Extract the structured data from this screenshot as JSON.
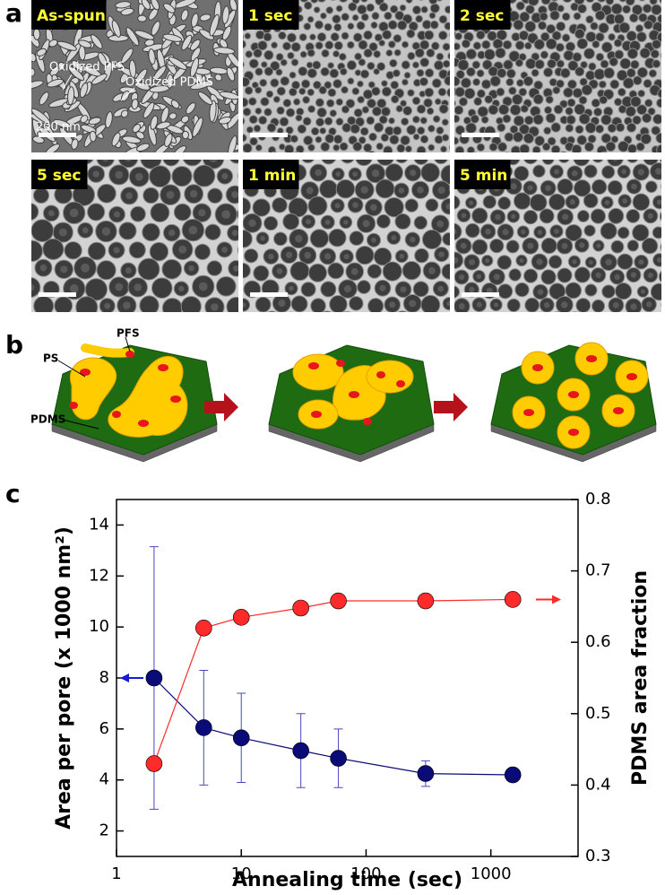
{
  "panel_a": {
    "label": "a",
    "images": [
      {
        "label": "As-spun"
      },
      {
        "label": "1 sec"
      },
      {
        "label": "2 sec"
      },
      {
        "label": "5 sec"
      },
      {
        "label": "1 min"
      },
      {
        "label": "5 min"
      }
    ],
    "annotations": {
      "pfs": "Oxidized PFS",
      "pdms": "Oxidized PDMS",
      "scale": "200 nm"
    }
  },
  "panel_b": {
    "label": "b",
    "labels": {
      "ps": "PS",
      "pfs": "PFS",
      "pdms": "PDMS"
    }
  },
  "panel_c": {
    "label": "c"
  },
  "chart_data": {
    "type": "scatter-line",
    "x_label": "Annealing time (sec)",
    "y_label": "Area per pore (x 1000 nm²)",
    "y2_label": "PDMS area fraction",
    "x": [
      2,
      5,
      10,
      30,
      60,
      300,
      1500
    ],
    "xlim": [
      1,
      5000
    ],
    "xticks": [
      1,
      10,
      100,
      1000
    ],
    "log_x": true,
    "ylim": [
      1,
      15
    ],
    "yticks": [
      2,
      4,
      6,
      8,
      10,
      12,
      14
    ],
    "y2lim": [
      0.3,
      0.8
    ],
    "y2ticks": [
      0.3,
      0.4,
      0.5,
      0.6,
      0.7,
      0.8
    ],
    "series": [
      {
        "color": "#0b0b78",
        "values": [
          8.0,
          6.05,
          5.65,
          5.15,
          4.85,
          4.25,
          4.2
        ],
        "errors": [
          5.15,
          2.25,
          1.75,
          1.45,
          1.15,
          0.5,
          0.1
        ]
      },
      {
        "color": "#ff2a2a",
        "axis": "y2",
        "values": [
          0.43,
          0.62,
          0.635,
          0.648,
          0.658,
          0.658,
          0.66
        ]
      }
    ]
  }
}
